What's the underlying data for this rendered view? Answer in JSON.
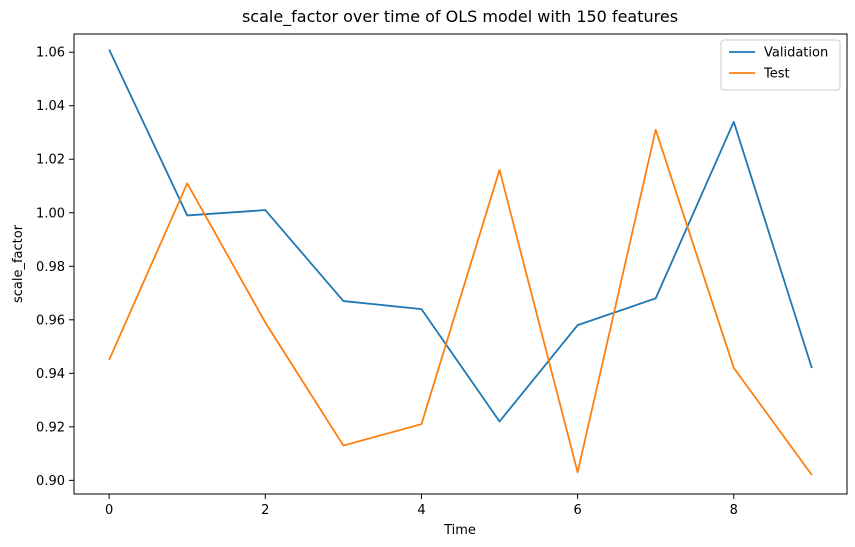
{
  "chart_data": {
    "type": "line",
    "title": "scale_factor over time of OLS model with 150 features",
    "xlabel": "Time",
    "ylabel": "scale_factor",
    "x": [
      0,
      1,
      2,
      3,
      4,
      5,
      6,
      7,
      8,
      9
    ],
    "xlim": [
      -0.45,
      9.45
    ],
    "ylim": [
      0.8949,
      1.0668
    ],
    "xticks": [
      0,
      2,
      4,
      6,
      8
    ],
    "yticks": [
      0.9,
      0.92,
      0.94,
      0.96,
      0.98,
      1.0,
      1.02,
      1.04,
      1.06
    ],
    "grid": false,
    "legend_position": "top-right",
    "series": [
      {
        "name": "Validation",
        "color": "#1f77b4",
        "values": [
          1.061,
          0.999,
          1.001,
          0.967,
          0.964,
          0.922,
          0.958,
          0.968,
          1.034,
          0.942
        ]
      },
      {
        "name": "Test",
        "color": "#ff7f0e",
        "values": [
          0.945,
          1.011,
          0.959,
          0.913,
          0.921,
          1.016,
          0.903,
          1.031,
          0.942,
          0.902
        ]
      }
    ]
  }
}
